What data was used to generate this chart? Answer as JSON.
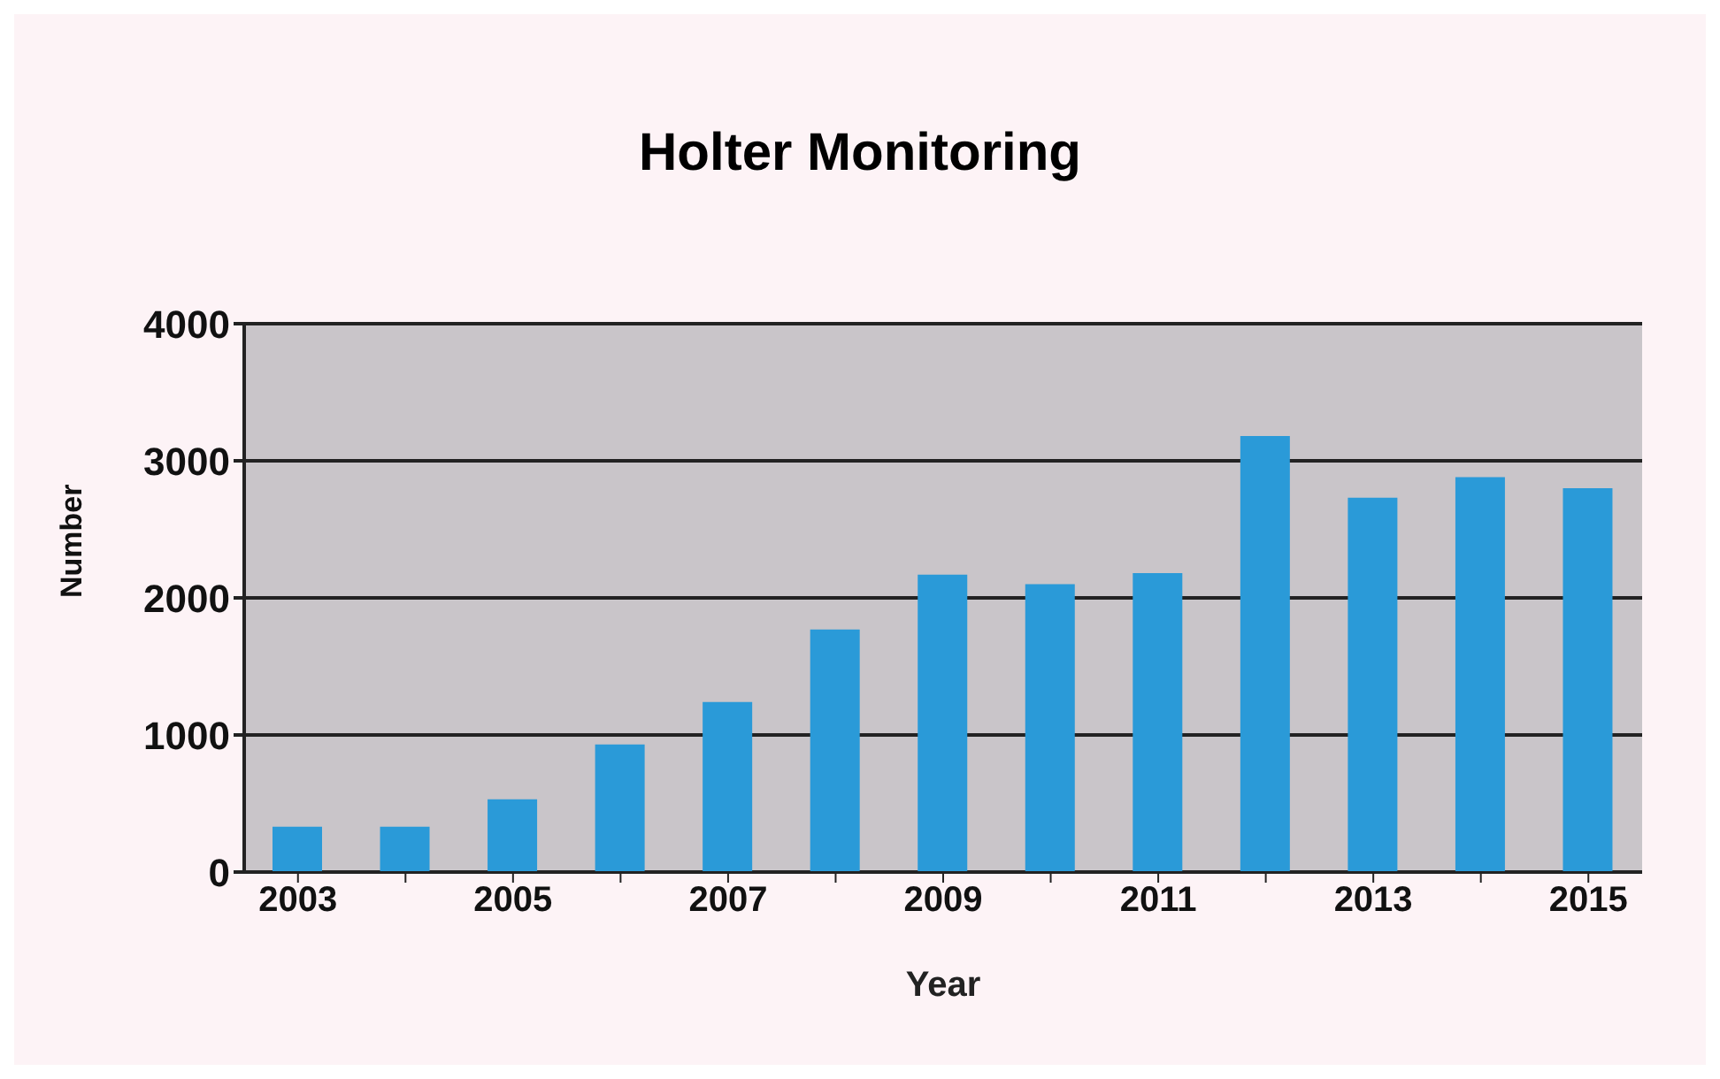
{
  "chart_data": {
    "type": "bar",
    "title": "Holter Monitoring",
    "xlabel": "Year",
    "ylabel": "Number",
    "categories": [
      "2003",
      null,
      "2005",
      null,
      "2007",
      null,
      "2009",
      null,
      "2011",
      null,
      "2013",
      null,
      "2015"
    ],
    "values": [
      330,
      330,
      530,
      930,
      1240,
      1770,
      2170,
      2100,
      2180,
      3180,
      2730,
      2880,
      2800
    ],
    "color": "#2a9ad8",
    "ylim": [
      0,
      4000
    ],
    "yticks": [
      0,
      1000,
      2000,
      3000,
      4000
    ],
    "grid": "y"
  }
}
